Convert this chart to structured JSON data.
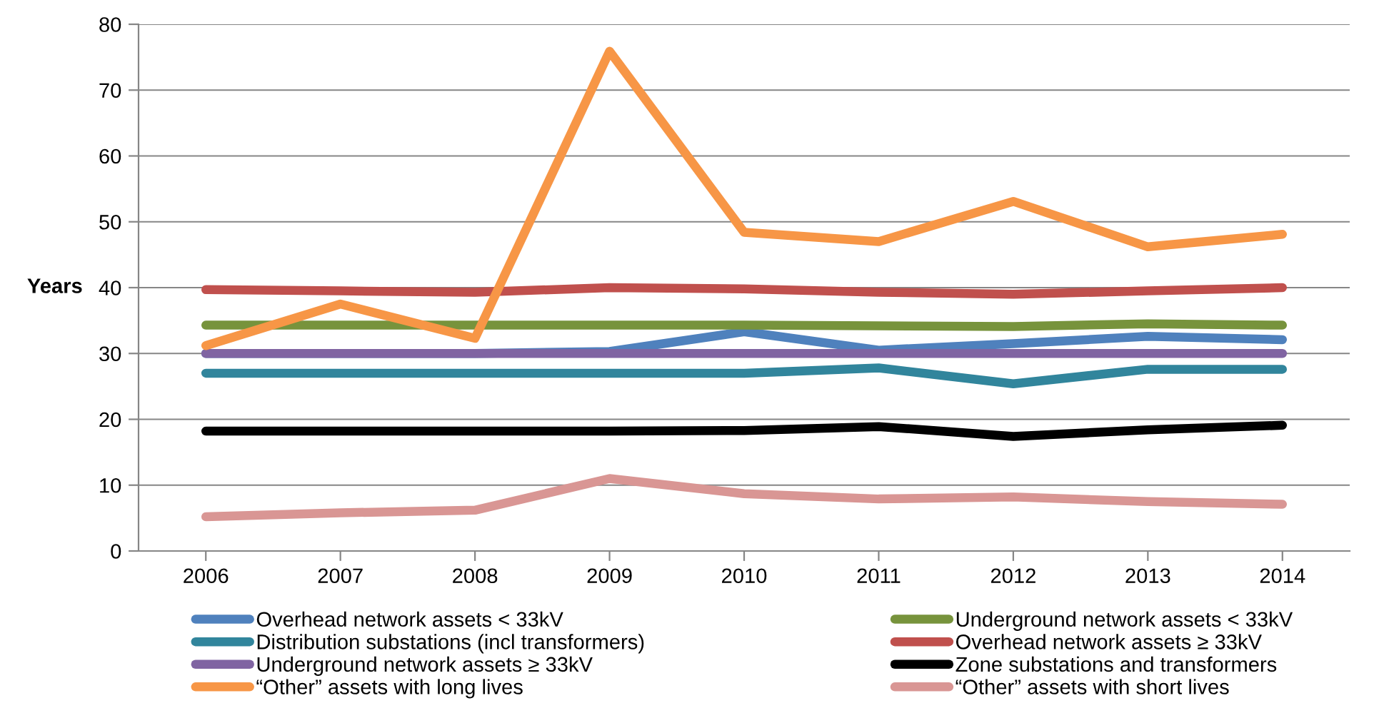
{
  "chart_data": {
    "type": "line",
    "ylabel": "Years",
    "categories": [
      "2006",
      "2007",
      "2008",
      "2009",
      "2010",
      "2011",
      "2012",
      "2013",
      "2014"
    ],
    "series": [
      {
        "name": "Overhead network assets < 33kV",
        "color": "#4f81bd",
        "values": [
          30,
          30,
          30,
          30.3,
          33.3,
          30.5,
          31.5,
          32.6,
          32.1
        ]
      },
      {
        "name": "Underground network assets < 33kV",
        "color": "#77933c",
        "values": [
          34.3,
          34.3,
          34.3,
          34.3,
          34.3,
          34.2,
          34.1,
          34.5,
          34.3
        ]
      },
      {
        "name": "Distribution substations (incl transformers)",
        "color": "#31859c",
        "values": [
          27,
          27,
          27,
          27,
          27,
          27.8,
          25.4,
          27.6,
          27.6
        ]
      },
      {
        "name": "Overhead network assets ≥ 33kV",
        "color": "#c0504d",
        "values": [
          39.7,
          39.5,
          39.3,
          40,
          39.8,
          39.3,
          39,
          39.5,
          40
        ]
      },
      {
        "name": "Underground network assets ≥ 33kV",
        "color": "#8064a2",
        "values": [
          30,
          30,
          30,
          30,
          30,
          30,
          30,
          30,
          30
        ]
      },
      {
        "name": "Zone substations and transformers",
        "color": "#000000",
        "values": [
          18.2,
          18.2,
          18.2,
          18.2,
          18.3,
          18.9,
          17.4,
          18.4,
          19.1
        ]
      },
      {
        "name": "“Other” assets with long lives",
        "color": "#f79646",
        "values": [
          31.2,
          37.5,
          32.3,
          75.9,
          48.4,
          47,
          53.1,
          46.2,
          48.1
        ]
      },
      {
        "name": "“Other” assets with short lives",
        "color": "#d99694",
        "values": [
          5.2,
          5.8,
          6.2,
          11,
          8.7,
          7.9,
          8.2,
          7.5,
          7.1
        ]
      }
    ],
    "ylim": [
      0,
      80
    ],
    "yticks": [
      0,
      10,
      20,
      30,
      40,
      50,
      60,
      70,
      80
    ],
    "grid": "y",
    "legend": "bottom",
    "marker": "none",
    "line_style": "solid"
  }
}
